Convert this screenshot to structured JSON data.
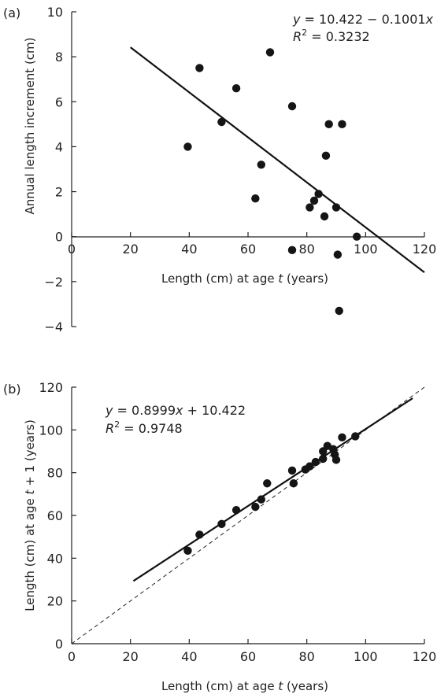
{
  "chart_data": [
    {
      "type": "scatter",
      "panel_label": "(a)",
      "xlabel_main": "Length (cm) at age ",
      "xlabel_var": "t",
      "xlabel_tail": " (years)",
      "ylabel": "Annual length increment (cm)",
      "xlim": [
        0,
        120
      ],
      "ylim": [
        -4,
        10
      ],
      "x_ticks": [
        0,
        20,
        40,
        60,
        80,
        100,
        120
      ],
      "y_ticks": [
        -4,
        -2,
        0,
        2,
        4,
        6,
        8,
        10
      ],
      "grid": false,
      "equation": {
        "line1_y": "y",
        "line1_rest": " = 10.422 − 0.1001",
        "line1_x": "x",
        "line2_r": "R",
        "line2_sup": "2",
        "line2_rest": " = 0.3232"
      },
      "regression": {
        "intercept": 10.422,
        "slope": -0.1001,
        "x_range": [
          20,
          120
        ]
      },
      "points": [
        {
          "x": 39.5,
          "y": 4.0
        },
        {
          "x": 43.5,
          "y": 7.5
        },
        {
          "x": 51,
          "y": 5.1
        },
        {
          "x": 56,
          "y": 6.6
        },
        {
          "x": 62.5,
          "y": 1.7
        },
        {
          "x": 64.5,
          "y": 3.2
        },
        {
          "x": 67.5,
          "y": 8.2
        },
        {
          "x": 75,
          "y": 5.8
        },
        {
          "x": 75,
          "y": -0.6
        },
        {
          "x": 81,
          "y": 1.3
        },
        {
          "x": 82.5,
          "y": 1.6
        },
        {
          "x": 84,
          "y": 1.9
        },
        {
          "x": 86,
          "y": 0.9
        },
        {
          "x": 86.5,
          "y": 3.6
        },
        {
          "x": 87.5,
          "y": 5.0
        },
        {
          "x": 90,
          "y": 1.3
        },
        {
          "x": 90.5,
          "y": -0.8
        },
        {
          "x": 91,
          "y": -3.3
        },
        {
          "x": 92,
          "y": 5.0
        },
        {
          "x": 97,
          "y": 0.0
        }
      ]
    },
    {
      "type": "scatter",
      "panel_label": "(b)",
      "xlabel_main": "Length (cm) at age ",
      "xlabel_var": "t",
      "xlabel_tail": " (years)",
      "ylabel_main": "Length (cm) at age ",
      "ylabel_var": "t",
      "ylabel_tail": " + 1 (years)",
      "xlim": [
        0,
        120
      ],
      "ylim": [
        0,
        120
      ],
      "x_ticks": [
        0,
        20,
        40,
        60,
        80,
        100,
        120
      ],
      "y_ticks": [
        0,
        20,
        40,
        60,
        80,
        100,
        120
      ],
      "grid": false,
      "equation": {
        "line1_y": "y",
        "line1_mid": " = 0.8999",
        "line1_x": "x",
        "line1_rest": " + 10.422",
        "line2_r": "R",
        "line2_sup": "2",
        "line2_rest": " = 0.9748"
      },
      "regression": {
        "intercept": 10.422,
        "slope": 0.8999,
        "x_range": [
          21,
          116
        ]
      },
      "reference_line": {
        "style": "dashed",
        "slope": 1,
        "intercept": 0,
        "x_range": [
          0,
          120
        ]
      },
      "points": [
        {
          "x": 39.5,
          "y": 43.5
        },
        {
          "x": 43.5,
          "y": 51
        },
        {
          "x": 51,
          "y": 56
        },
        {
          "x": 56,
          "y": 62.5
        },
        {
          "x": 62.5,
          "y": 64
        },
        {
          "x": 64.5,
          "y": 67.5
        },
        {
          "x": 66.5,
          "y": 75
        },
        {
          "x": 75,
          "y": 81
        },
        {
          "x": 75.5,
          "y": 75
        },
        {
          "x": 79.5,
          "y": 81.5
        },
        {
          "x": 81,
          "y": 83
        },
        {
          "x": 83,
          "y": 85
        },
        {
          "x": 85.5,
          "y": 86.5
        },
        {
          "x": 85.5,
          "y": 90
        },
        {
          "x": 87,
          "y": 92.5
        },
        {
          "x": 89,
          "y": 91
        },
        {
          "x": 89.5,
          "y": 88.5
        },
        {
          "x": 90,
          "y": 86
        },
        {
          "x": 92,
          "y": 96.5
        },
        {
          "x": 96.5,
          "y": 97
        }
      ]
    }
  ]
}
